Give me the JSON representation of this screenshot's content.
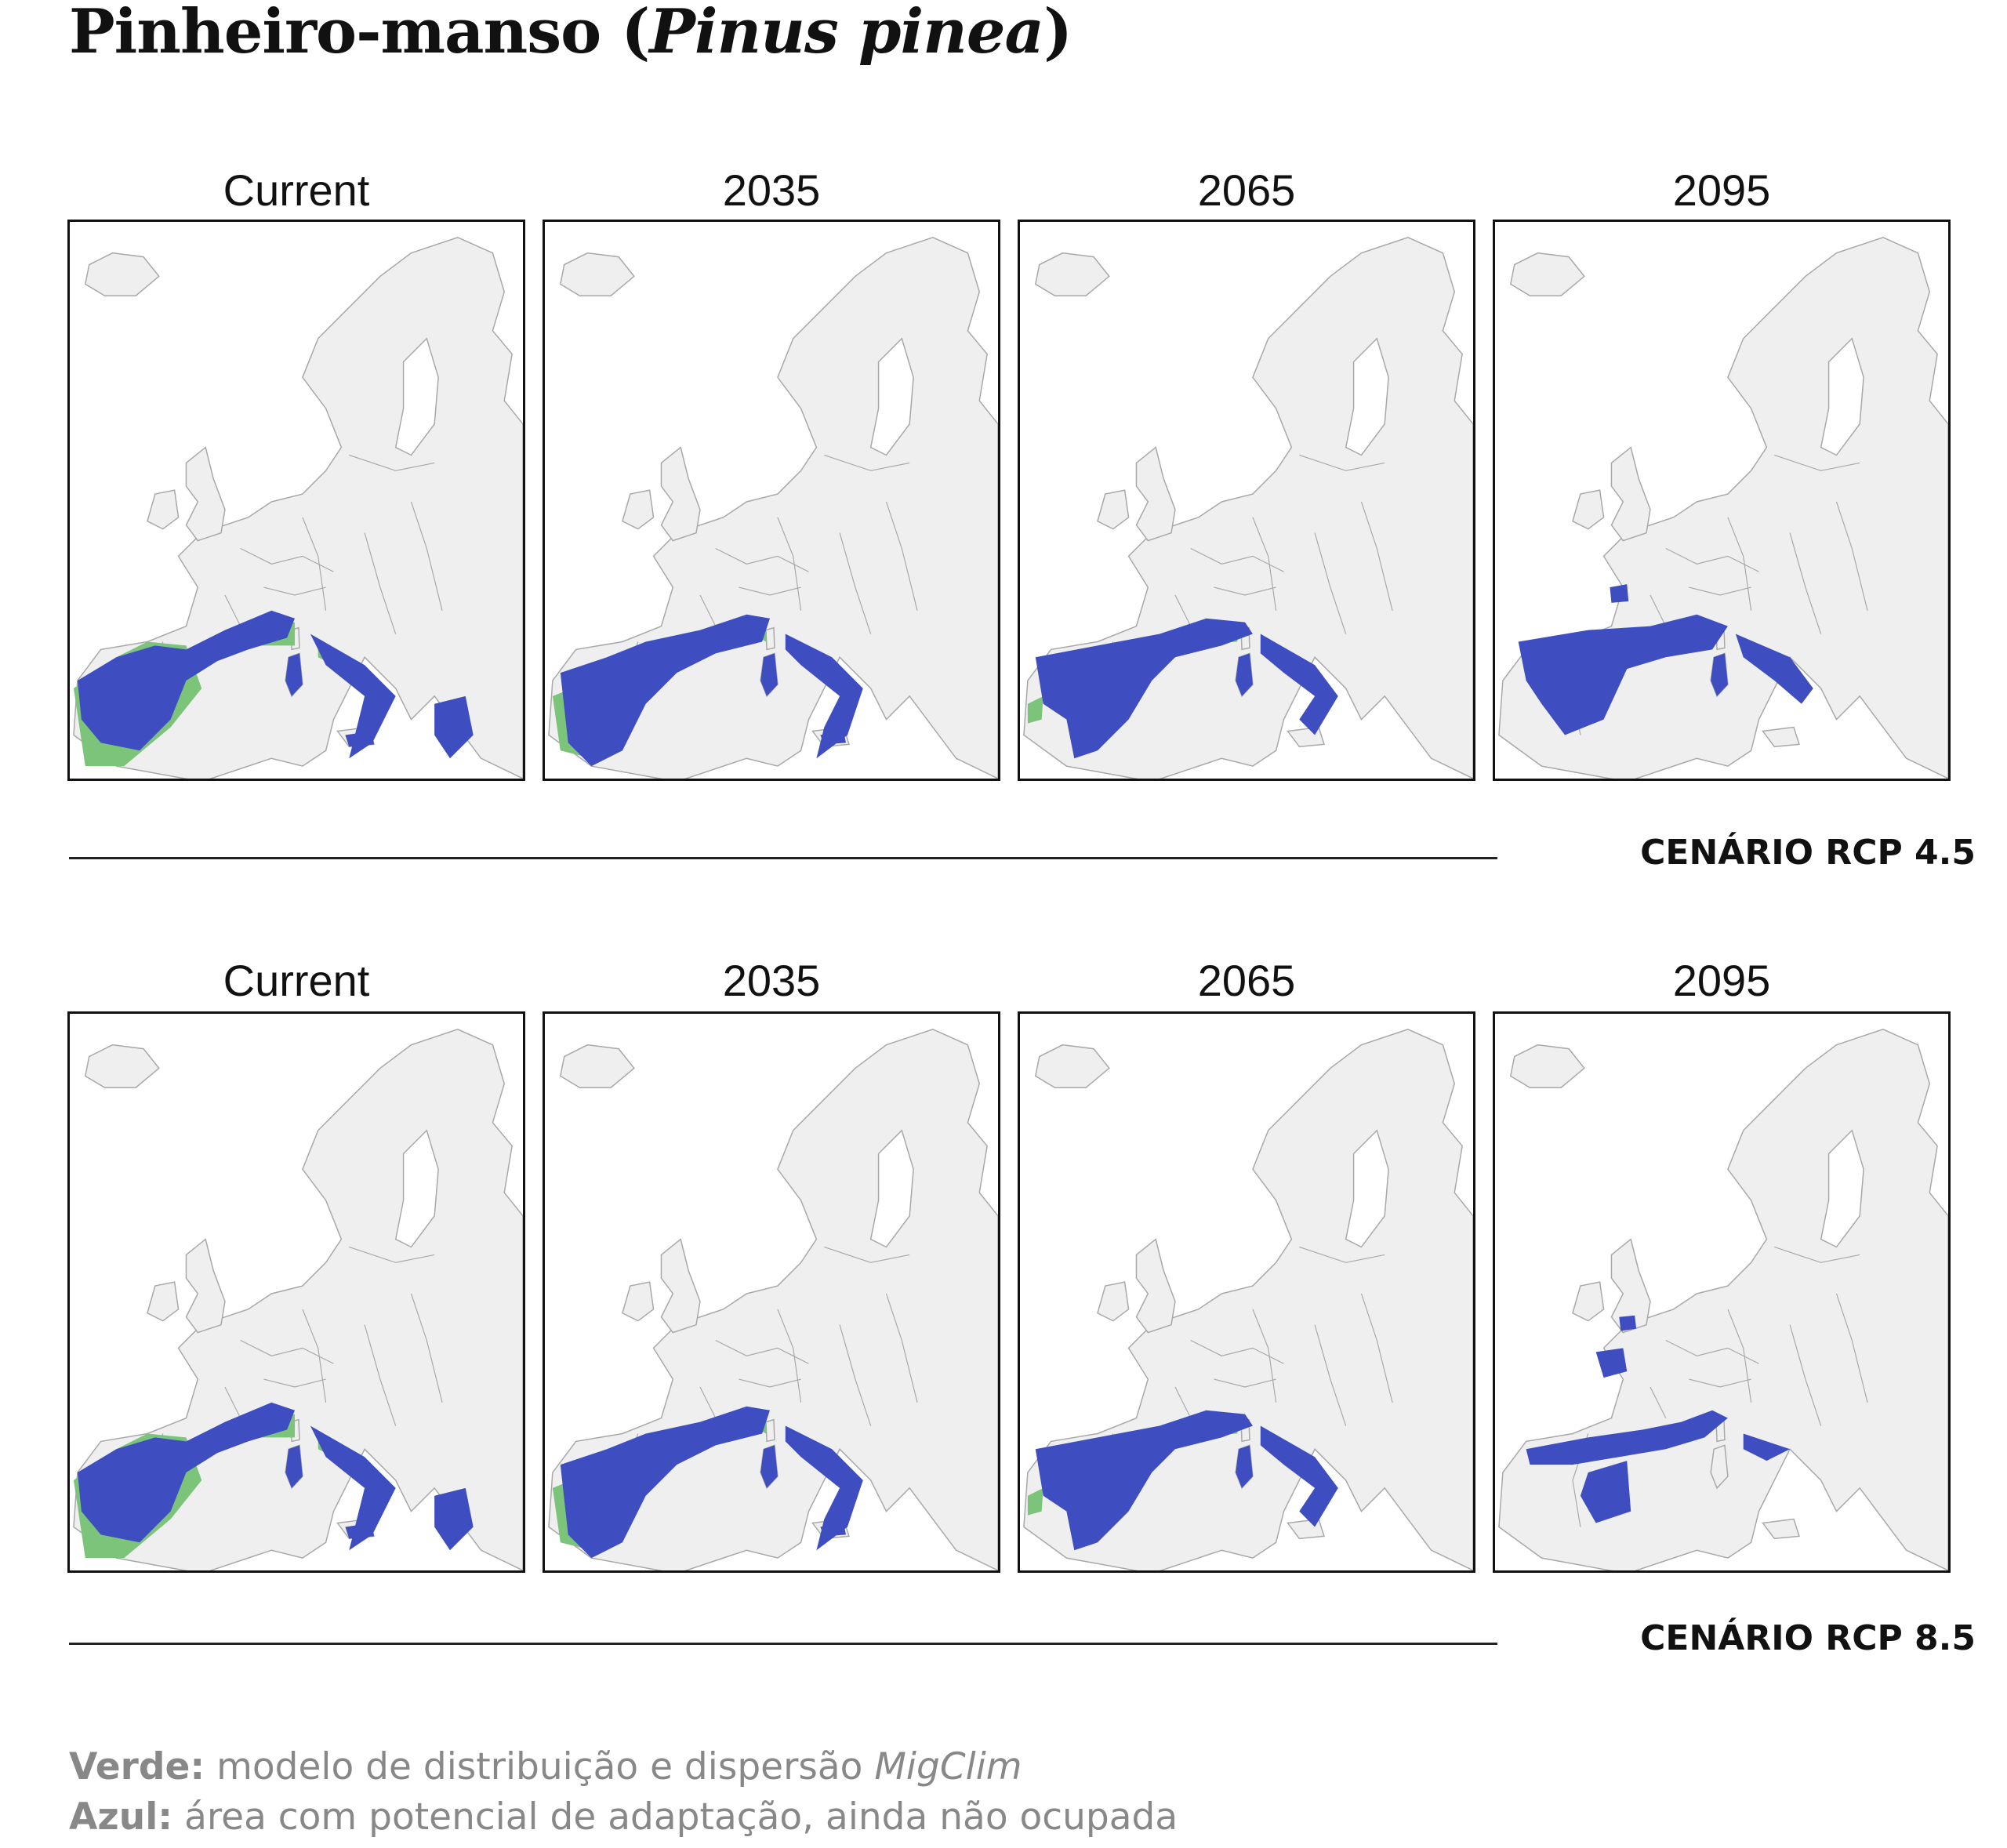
{
  "title": {
    "main": "Pinheiro-manso (",
    "scientific": "Pinus pinea",
    "close": ")"
  },
  "rows": [
    {
      "scenario": "CENÁRIO RCP 4.5",
      "panels": [
        {
          "label": "Current",
          "range": 4
        },
        {
          "label": "2035",
          "range": 3
        },
        {
          "label": "2065",
          "range": 2
        },
        {
          "label": "2095",
          "range": 1
        }
      ]
    },
    {
      "scenario": "CENÁRIO RCP 8.5",
      "panels": [
        {
          "label": "Current",
          "range": 4
        },
        {
          "label": "2035",
          "range": 3
        },
        {
          "label": "2065",
          "range": 2
        },
        {
          "label": "2095",
          "range": 0
        }
      ]
    }
  ],
  "legend": {
    "green_key": "Verde:",
    "green_text": "modelo de distribuição e dispersão ",
    "green_model": "MigClim",
    "blue_key": "Azul:",
    "blue_text": "área com potencial de adaptação, ainda não ocupada"
  },
  "colors": {
    "land": "#efefef",
    "border": "#a8a8a8",
    "green": "#7cc47a",
    "blue": "#3e4ec0"
  }
}
